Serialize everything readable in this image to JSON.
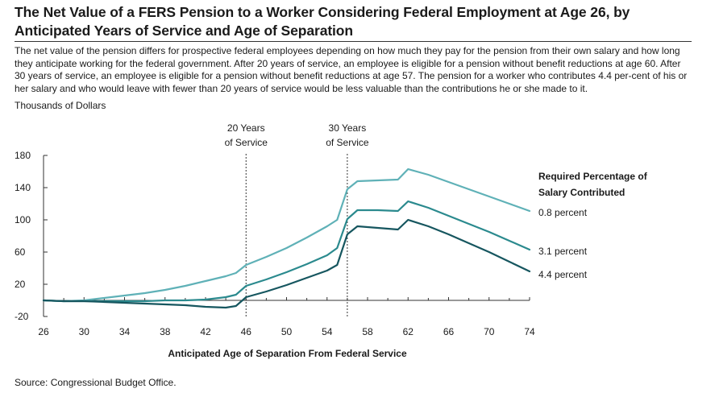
{
  "title": "The Net Value of a FERS Pension to a Worker Considering Federal Employment at Age 26, by Anticipated Years of Service and Age of Separation",
  "description": "The net value of the pension differs for prospective federal employees depending on how much they pay for the pension from their own salary and how long they anticipate working for the federal government. After 20 years of service, an employee is eligible for a pension without benefit reductions at age 60. After 30 years of service, an employee is eligible for a pension without benefit reductions at age 57. The pension for a worker who contributes 4.4 per-cent of his or her salary and who would leave with fewer than 20 years of service would be less valuable than the contributions he or she made to it.",
  "source": "Source: Congressional Budget Office.",
  "chart_data": {
    "type": "line",
    "ylabel": "Thousands of Dollars",
    "xlabel": "Anticipated Age of Separation From Federal Service",
    "xlim": [
      26,
      74
    ],
    "ylim": [
      -20,
      180
    ],
    "x_ticks": [
      26,
      30,
      34,
      38,
      42,
      46,
      50,
      54,
      58,
      62,
      66,
      70,
      74
    ],
    "y_ticks": [
      -20,
      20,
      60,
      100,
      140,
      180
    ],
    "grid": false,
    "legend_title": "Required Percentage of Salary Contributed",
    "legend_placement": "right",
    "x": [
      26,
      28,
      30,
      32,
      34,
      36,
      38,
      40,
      42,
      44,
      45,
      46,
      48,
      50,
      52,
      54,
      55,
      56,
      57,
      59,
      61,
      62,
      64,
      66,
      68,
      70,
      72,
      74
    ],
    "series": [
      {
        "name": "0.8 percent",
        "color": "#5fb1b7",
        "values": [
          0,
          -1,
          0,
          3,
          6,
          9,
          13,
          18,
          24,
          30,
          34,
          44,
          54,
          65,
          78,
          92,
          100,
          138,
          148,
          149,
          150,
          163,
          156,
          147,
          138,
          129,
          120,
          111
        ]
      },
      {
        "name": "3.1 percent",
        "color": "#2b8a8e",
        "values": [
          0,
          -1,
          -1,
          -1,
          -1,
          -1,
          0,
          0,
          1,
          4,
          7,
          18,
          26,
          35,
          45,
          56,
          65,
          101,
          112,
          112,
          111,
          123,
          115,
          105,
          95,
          85,
          74,
          63
        ]
      },
      {
        "name": "4.4 percent",
        "color": "#16565f",
        "values": [
          0,
          -1,
          -1,
          -2,
          -3,
          -4,
          -5,
          -6,
          -8,
          -9,
          -7,
          4,
          11,
          19,
          28,
          37,
          44,
          82,
          92,
          90,
          88,
          100,
          92,
          82,
          71,
          60,
          48,
          36
        ]
      }
    ],
    "annotations": [
      {
        "x": 46,
        "lines": [
          "20 Years",
          "of Service"
        ]
      },
      {
        "x": 56,
        "lines": [
          "30 Years",
          "of Service"
        ]
      }
    ]
  }
}
